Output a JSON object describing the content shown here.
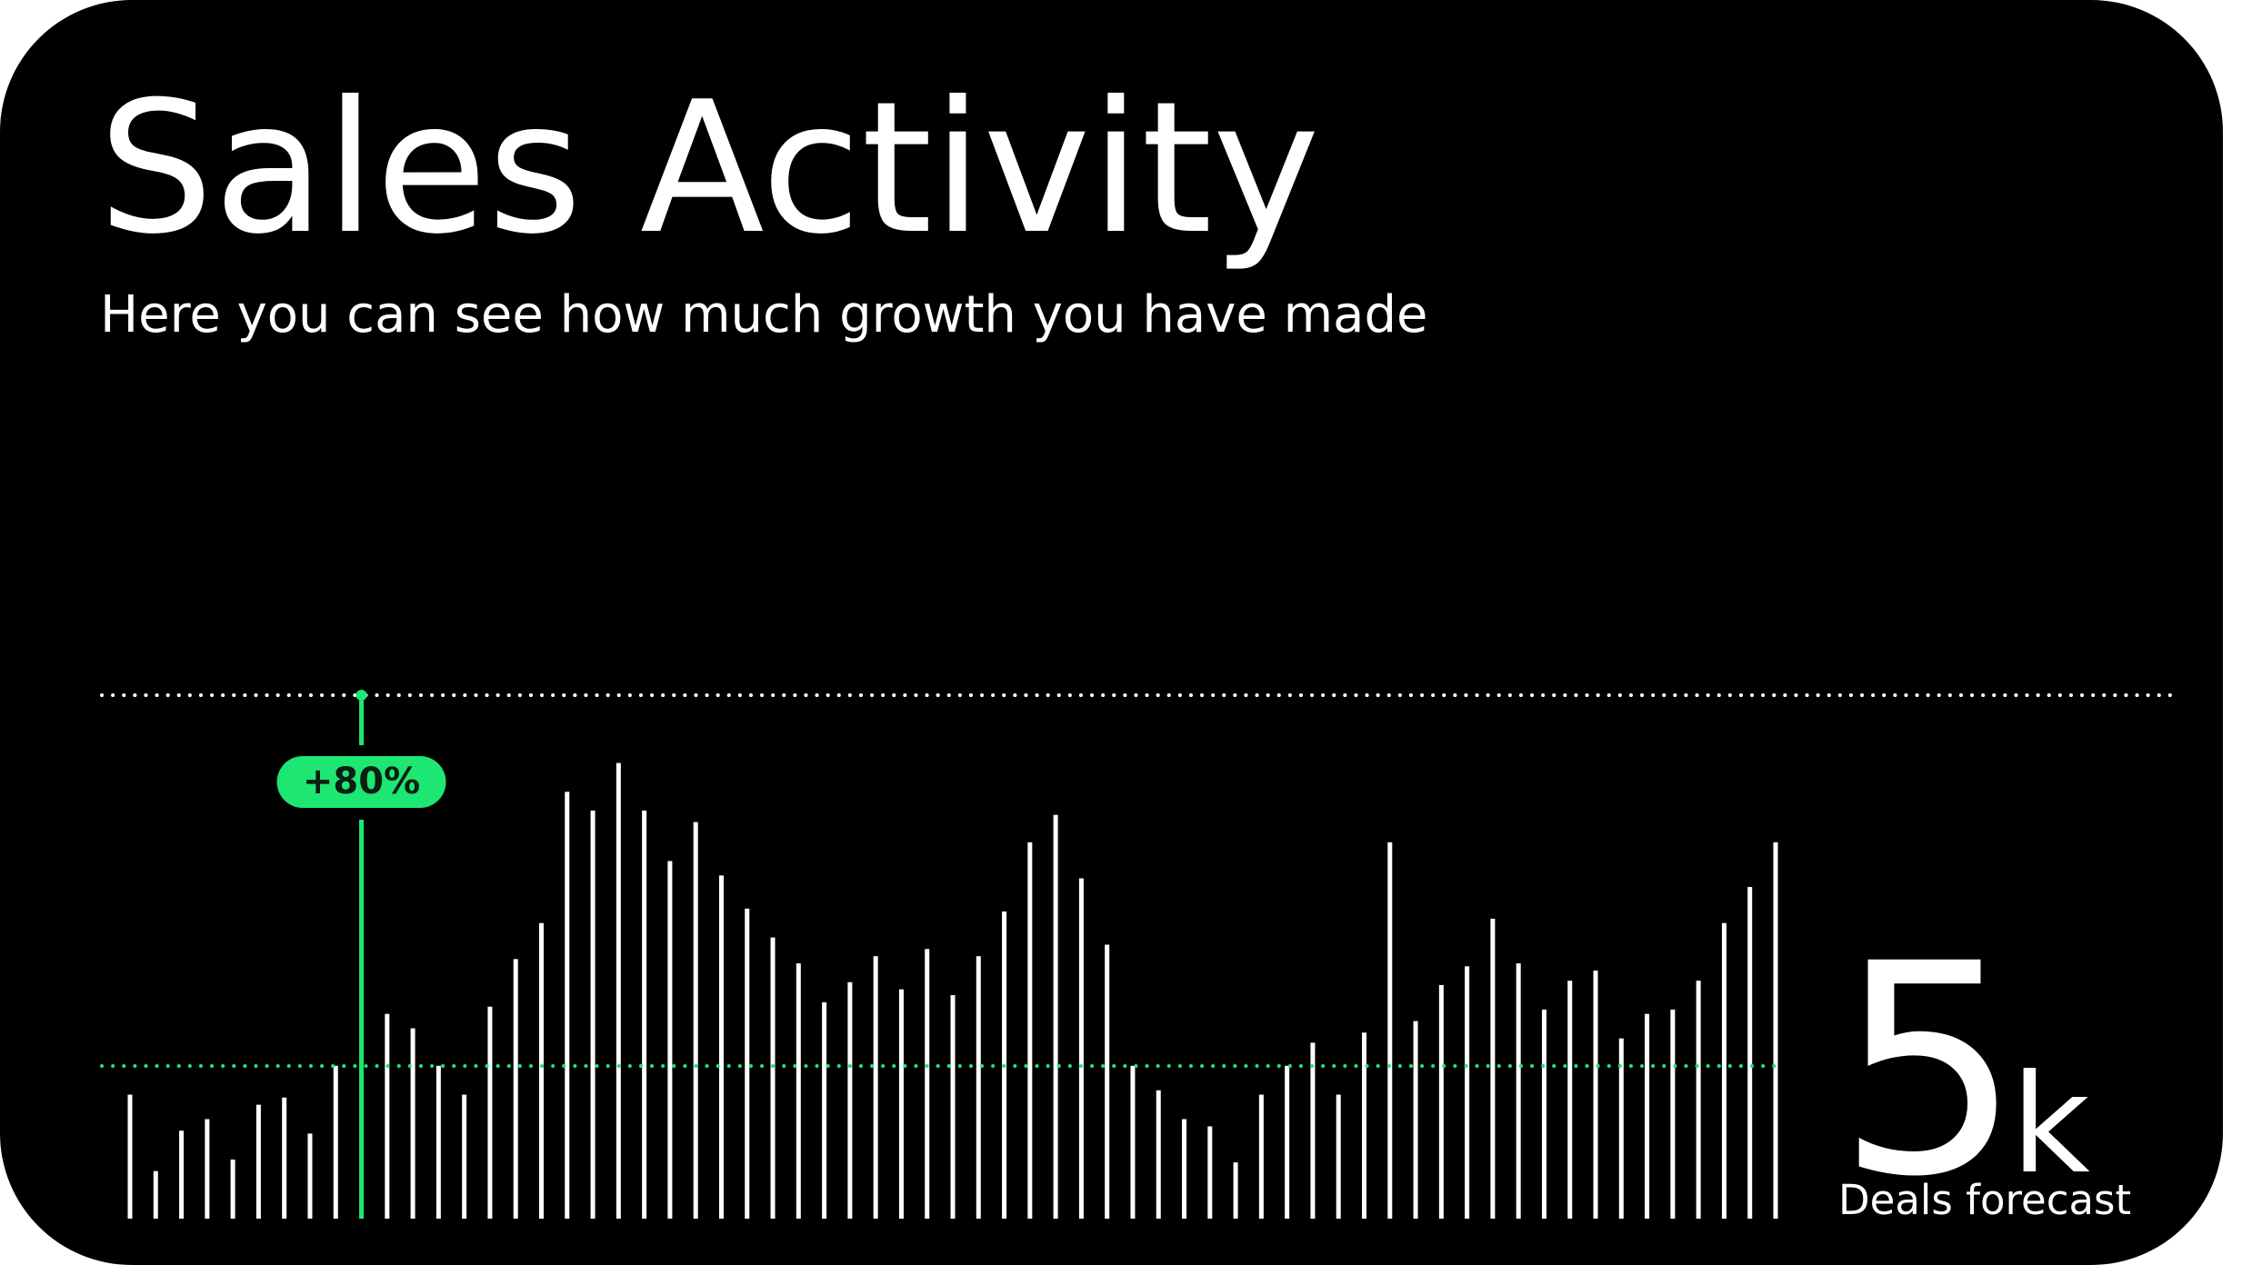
{
  "chart_data": {
    "type": "bar",
    "title": "Sales Activity",
    "subtitle": "Here you can see how much growth you have made",
    "annotation": "+80%",
    "kpi_value": "5",
    "kpi_unit": "k",
    "kpi_label": "Deals forecast",
    "values": [
      86,
      33,
      61,
      69,
      41,
      79,
      84,
      59,
      106,
      363,
      142,
      132,
      106,
      86,
      147,
      180,
      205,
      296,
      283,
      316,
      283,
      248,
      275,
      238,
      215,
      195,
      177,
      150,
      164,
      182,
      159,
      187,
      155,
      182,
      213,
      261,
      280,
      236,
      190,
      106,
      89,
      69,
      64,
      39,
      86,
      106,
      122,
      86,
      129,
      261,
      137,
      162,
      175,
      208,
      177,
      145,
      165,
      172,
      125,
      142,
      145,
      165,
      205,
      230,
      261
    ],
    "color": "#ffffff",
    "highlight": 9,
    "highlight_color": "#1ee672",
    "ylim": [
      0,
      363
    ]
  }
}
